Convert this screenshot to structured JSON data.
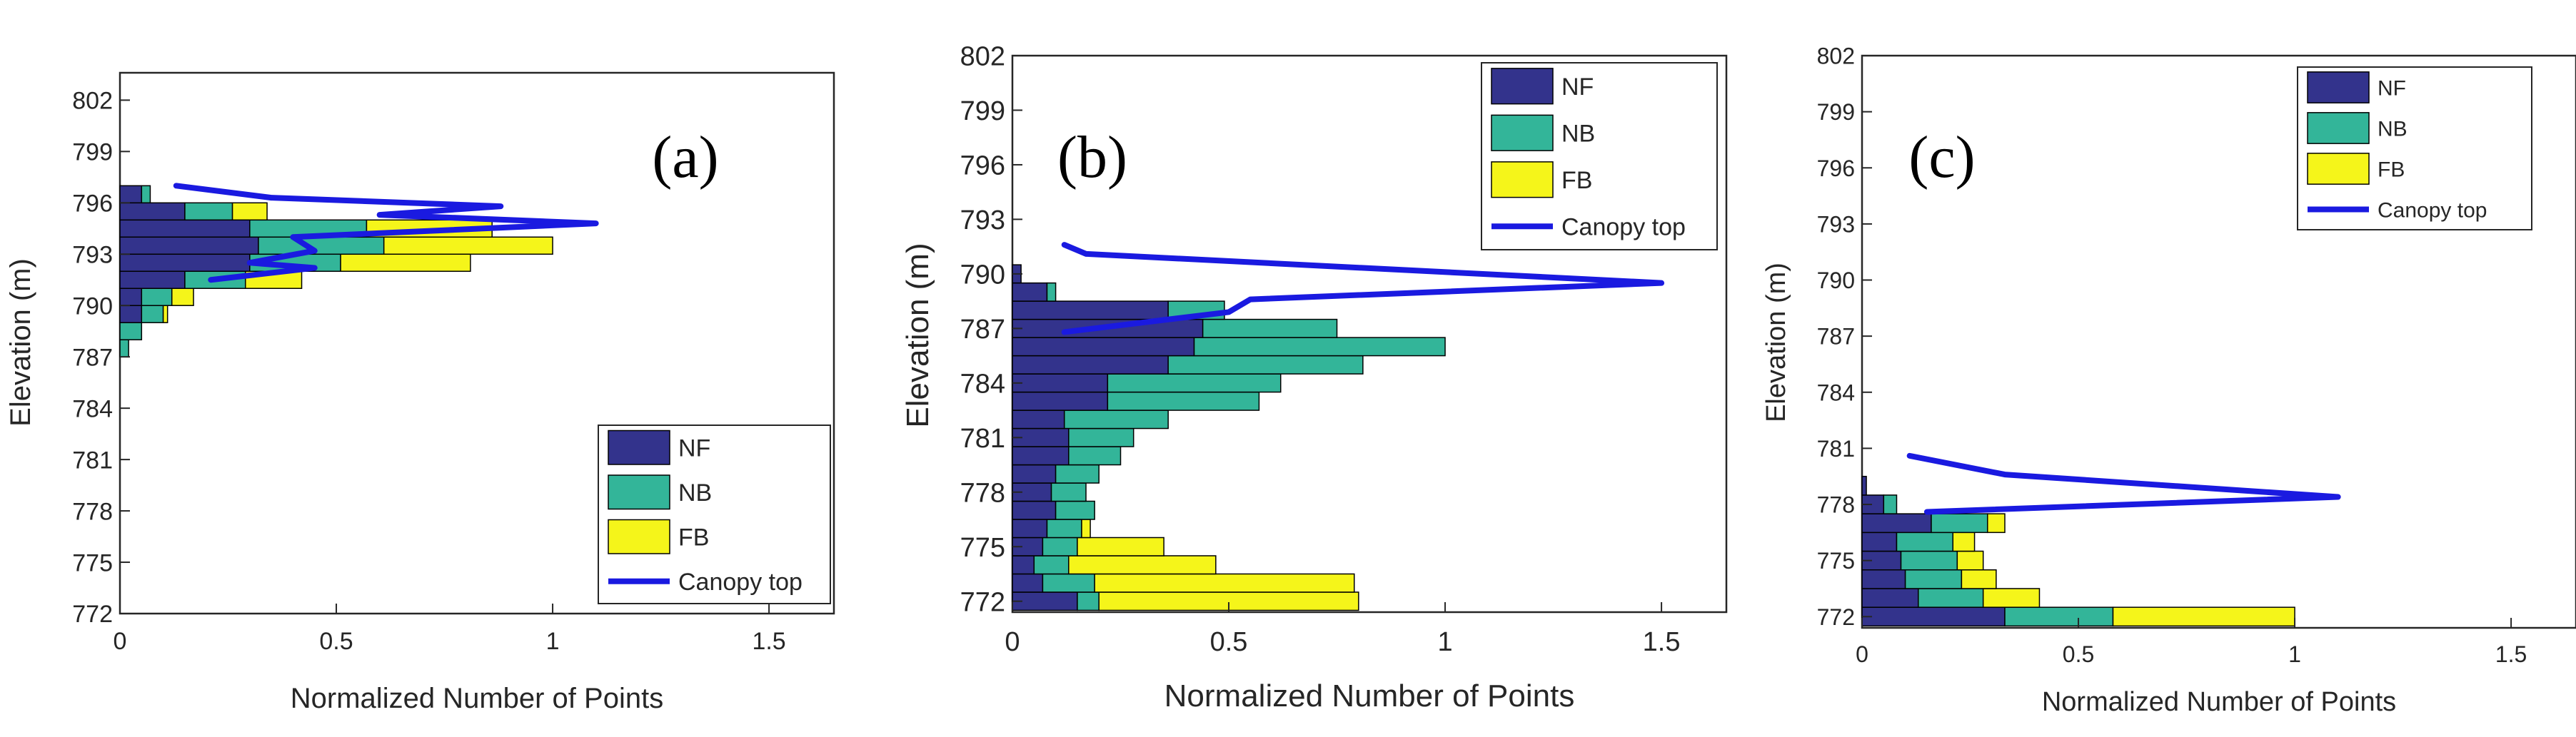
{
  "colors": {
    "NF": "#33338c",
    "NB": "#33b599",
    "FB": "#f5f51a",
    "canopy": "#1a1ae0",
    "axis": "#262626",
    "legend_border": "#262626"
  },
  "chart_data": [
    {
      "type": "bar",
      "orientation": "horizontal",
      "stacked": true,
      "panel_label": "(a)",
      "xlabel": "Normalized Number of Points",
      "ylabel": "Elevation (m)",
      "xlim": [
        0,
        1.65
      ],
      "ylim": [
        772,
        803.6
      ],
      "xticks": [
        "0",
        "0.5",
        "1",
        "1.5"
      ],
      "xtick_values": [
        0,
        0.5,
        1,
        1.5
      ],
      "yticks": [
        "772",
        "775",
        "778",
        "781",
        "784",
        "787",
        "790",
        "793",
        "796",
        "799",
        "802"
      ],
      "ytick_values": [
        772,
        775,
        778,
        781,
        784,
        787,
        790,
        793,
        796,
        799,
        802
      ],
      "legend": {
        "position": "bottom-right",
        "entries": [
          "NF",
          "NB",
          "FB",
          "Canopy top"
        ]
      },
      "bin_height": 1,
      "bins": [
        {
          "y": 787.5,
          "NF": 0.0,
          "NB": 0.02,
          "FB": 0.0
        },
        {
          "y": 788.5,
          "NF": 0.0,
          "NB": 0.05,
          "FB": 0.0
        },
        {
          "y": 789.5,
          "NF": 0.05,
          "NB": 0.05,
          "FB": 0.01
        },
        {
          "y": 790.5,
          "NF": 0.05,
          "NB": 0.07,
          "FB": 0.05
        },
        {
          "y": 791.5,
          "NF": 0.15,
          "NB": 0.14,
          "FB": 0.13
        },
        {
          "y": 792.5,
          "NF": 0.3,
          "NB": 0.21,
          "FB": 0.3
        },
        {
          "y": 793.5,
          "NF": 0.32,
          "NB": 0.29,
          "FB": 0.39
        },
        {
          "y": 794.5,
          "NF": 0.3,
          "NB": 0.27,
          "FB": 0.29
        },
        {
          "y": 795.5,
          "NF": 0.15,
          "NB": 0.11,
          "FB": 0.08
        },
        {
          "y": 796.5,
          "NF": 0.05,
          "NB": 0.02,
          "FB": 0.0
        }
      ],
      "canopy_top": {
        "x": [
          0.13,
          0.35,
          0.88,
          0.6,
          1.1,
          0.4,
          0.45,
          0.3,
          0.45,
          0.21
        ],
        "y": [
          797.0,
          796.3,
          795.8,
          795.3,
          794.8,
          794.0,
          793.2,
          792.5,
          792.2,
          791.5
        ]
      }
    },
    {
      "type": "bar",
      "orientation": "horizontal",
      "stacked": true,
      "panel_label": "(b)",
      "xlabel": "Normalized Number of Points",
      "ylabel": "Elevation (m)",
      "xlim": [
        0,
        1.65
      ],
      "ylim": [
        771.4,
        802
      ],
      "xticks": [
        "0",
        "0.5",
        "1",
        "1.5"
      ],
      "xtick_values": [
        0,
        0.5,
        1,
        1.5
      ],
      "yticks": [
        "772",
        "775",
        "778",
        "781",
        "784",
        "787",
        "790",
        "793",
        "796",
        "799",
        "802"
      ],
      "ytick_values": [
        772,
        775,
        778,
        781,
        784,
        787,
        790,
        793,
        796,
        799,
        802
      ],
      "legend": {
        "position": "top-right",
        "entries": [
          "NF",
          "NB",
          "FB",
          "Canopy top"
        ]
      },
      "bin_height": 1,
      "bins": [
        {
          "y": 772,
          "NF": 0.15,
          "NB": 0.05,
          "FB": 0.6
        },
        {
          "y": 773,
          "NF": 0.07,
          "NB": 0.12,
          "FB": 0.6
        },
        {
          "y": 774,
          "NF": 0.05,
          "NB": 0.08,
          "FB": 0.34
        },
        {
          "y": 775,
          "NF": 0.07,
          "NB": 0.08,
          "FB": 0.2
        },
        {
          "y": 776,
          "NF": 0.08,
          "NB": 0.08,
          "FB": 0.02
        },
        {
          "y": 777,
          "NF": 0.1,
          "NB": 0.09,
          "FB": 0.0
        },
        {
          "y": 778,
          "NF": 0.09,
          "NB": 0.08,
          "FB": 0.0
        },
        {
          "y": 779,
          "NF": 0.1,
          "NB": 0.1,
          "FB": 0.0
        },
        {
          "y": 780,
          "NF": 0.13,
          "NB": 0.12,
          "FB": 0.0
        },
        {
          "y": 781,
          "NF": 0.13,
          "NB": 0.15,
          "FB": 0.0
        },
        {
          "y": 782,
          "NF": 0.12,
          "NB": 0.24,
          "FB": 0.0
        },
        {
          "y": 783,
          "NF": 0.22,
          "NB": 0.35,
          "FB": 0.0
        },
        {
          "y": 784,
          "NF": 0.22,
          "NB": 0.4,
          "FB": 0.0
        },
        {
          "y": 785,
          "NF": 0.36,
          "NB": 0.45,
          "FB": 0.0
        },
        {
          "y": 786,
          "NF": 0.42,
          "NB": 0.58,
          "FB": 0.0
        },
        {
          "y": 787,
          "NF": 0.44,
          "NB": 0.31,
          "FB": 0.0
        },
        {
          "y": 788,
          "NF": 0.36,
          "NB": 0.13,
          "FB": 0.0
        },
        {
          "y": 789,
          "NF": 0.08,
          "NB": 0.02,
          "FB": 0.0
        },
        {
          "y": 790,
          "NF": 0.02,
          "NB": 0.0,
          "FB": 0.0
        }
      ],
      "canopy_top": {
        "x": [
          0.12,
          0.17,
          1.5,
          0.55,
          0.5,
          0.12
        ],
        "y": [
          791.6,
          791.1,
          789.5,
          788.6,
          787.9,
          786.8
        ]
      }
    },
    {
      "type": "bar",
      "orientation": "horizontal",
      "stacked": true,
      "panel_label": "(c)",
      "xlabel": "Normalized Number of Points",
      "ylabel": "Elevation (m)",
      "xlim": [
        0,
        1.65
      ],
      "ylim": [
        771.4,
        802
      ],
      "xticks": [
        "0",
        "0.5",
        "1",
        "1.5"
      ],
      "xtick_values": [
        0,
        0.5,
        1,
        1.5
      ],
      "yticks": [
        "772",
        "775",
        "778",
        "781",
        "784",
        "787",
        "790",
        "793",
        "796",
        "799",
        "802"
      ],
      "ytick_values": [
        772,
        775,
        778,
        781,
        784,
        787,
        790,
        793,
        796,
        799,
        802
      ],
      "legend": {
        "position": "top-right",
        "entries": [
          "NF",
          "NB",
          "FB",
          "Canopy top"
        ]
      },
      "bin_height": 1,
      "bins": [
        {
          "y": 772,
          "NF": 0.33,
          "NB": 0.25,
          "FB": 0.42
        },
        {
          "y": 773,
          "NF": 0.13,
          "NB": 0.15,
          "FB": 0.13
        },
        {
          "y": 774,
          "NF": 0.1,
          "NB": 0.13,
          "FB": 0.08
        },
        {
          "y": 775,
          "NF": 0.09,
          "NB": 0.13,
          "FB": 0.06
        },
        {
          "y": 776,
          "NF": 0.08,
          "NB": 0.13,
          "FB": 0.05
        },
        {
          "y": 777,
          "NF": 0.16,
          "NB": 0.13,
          "FB": 0.04
        },
        {
          "y": 778,
          "NF": 0.05,
          "NB": 0.03,
          "FB": 0.0
        },
        {
          "y": 779,
          "NF": 0.01,
          "NB": 0.0,
          "FB": 0.0
        }
      ],
      "canopy_top": {
        "x": [
          0.11,
          0.33,
          1.1,
          0.15
        ],
        "y": [
          780.6,
          779.6,
          778.4,
          777.6
        ]
      }
    }
  ]
}
